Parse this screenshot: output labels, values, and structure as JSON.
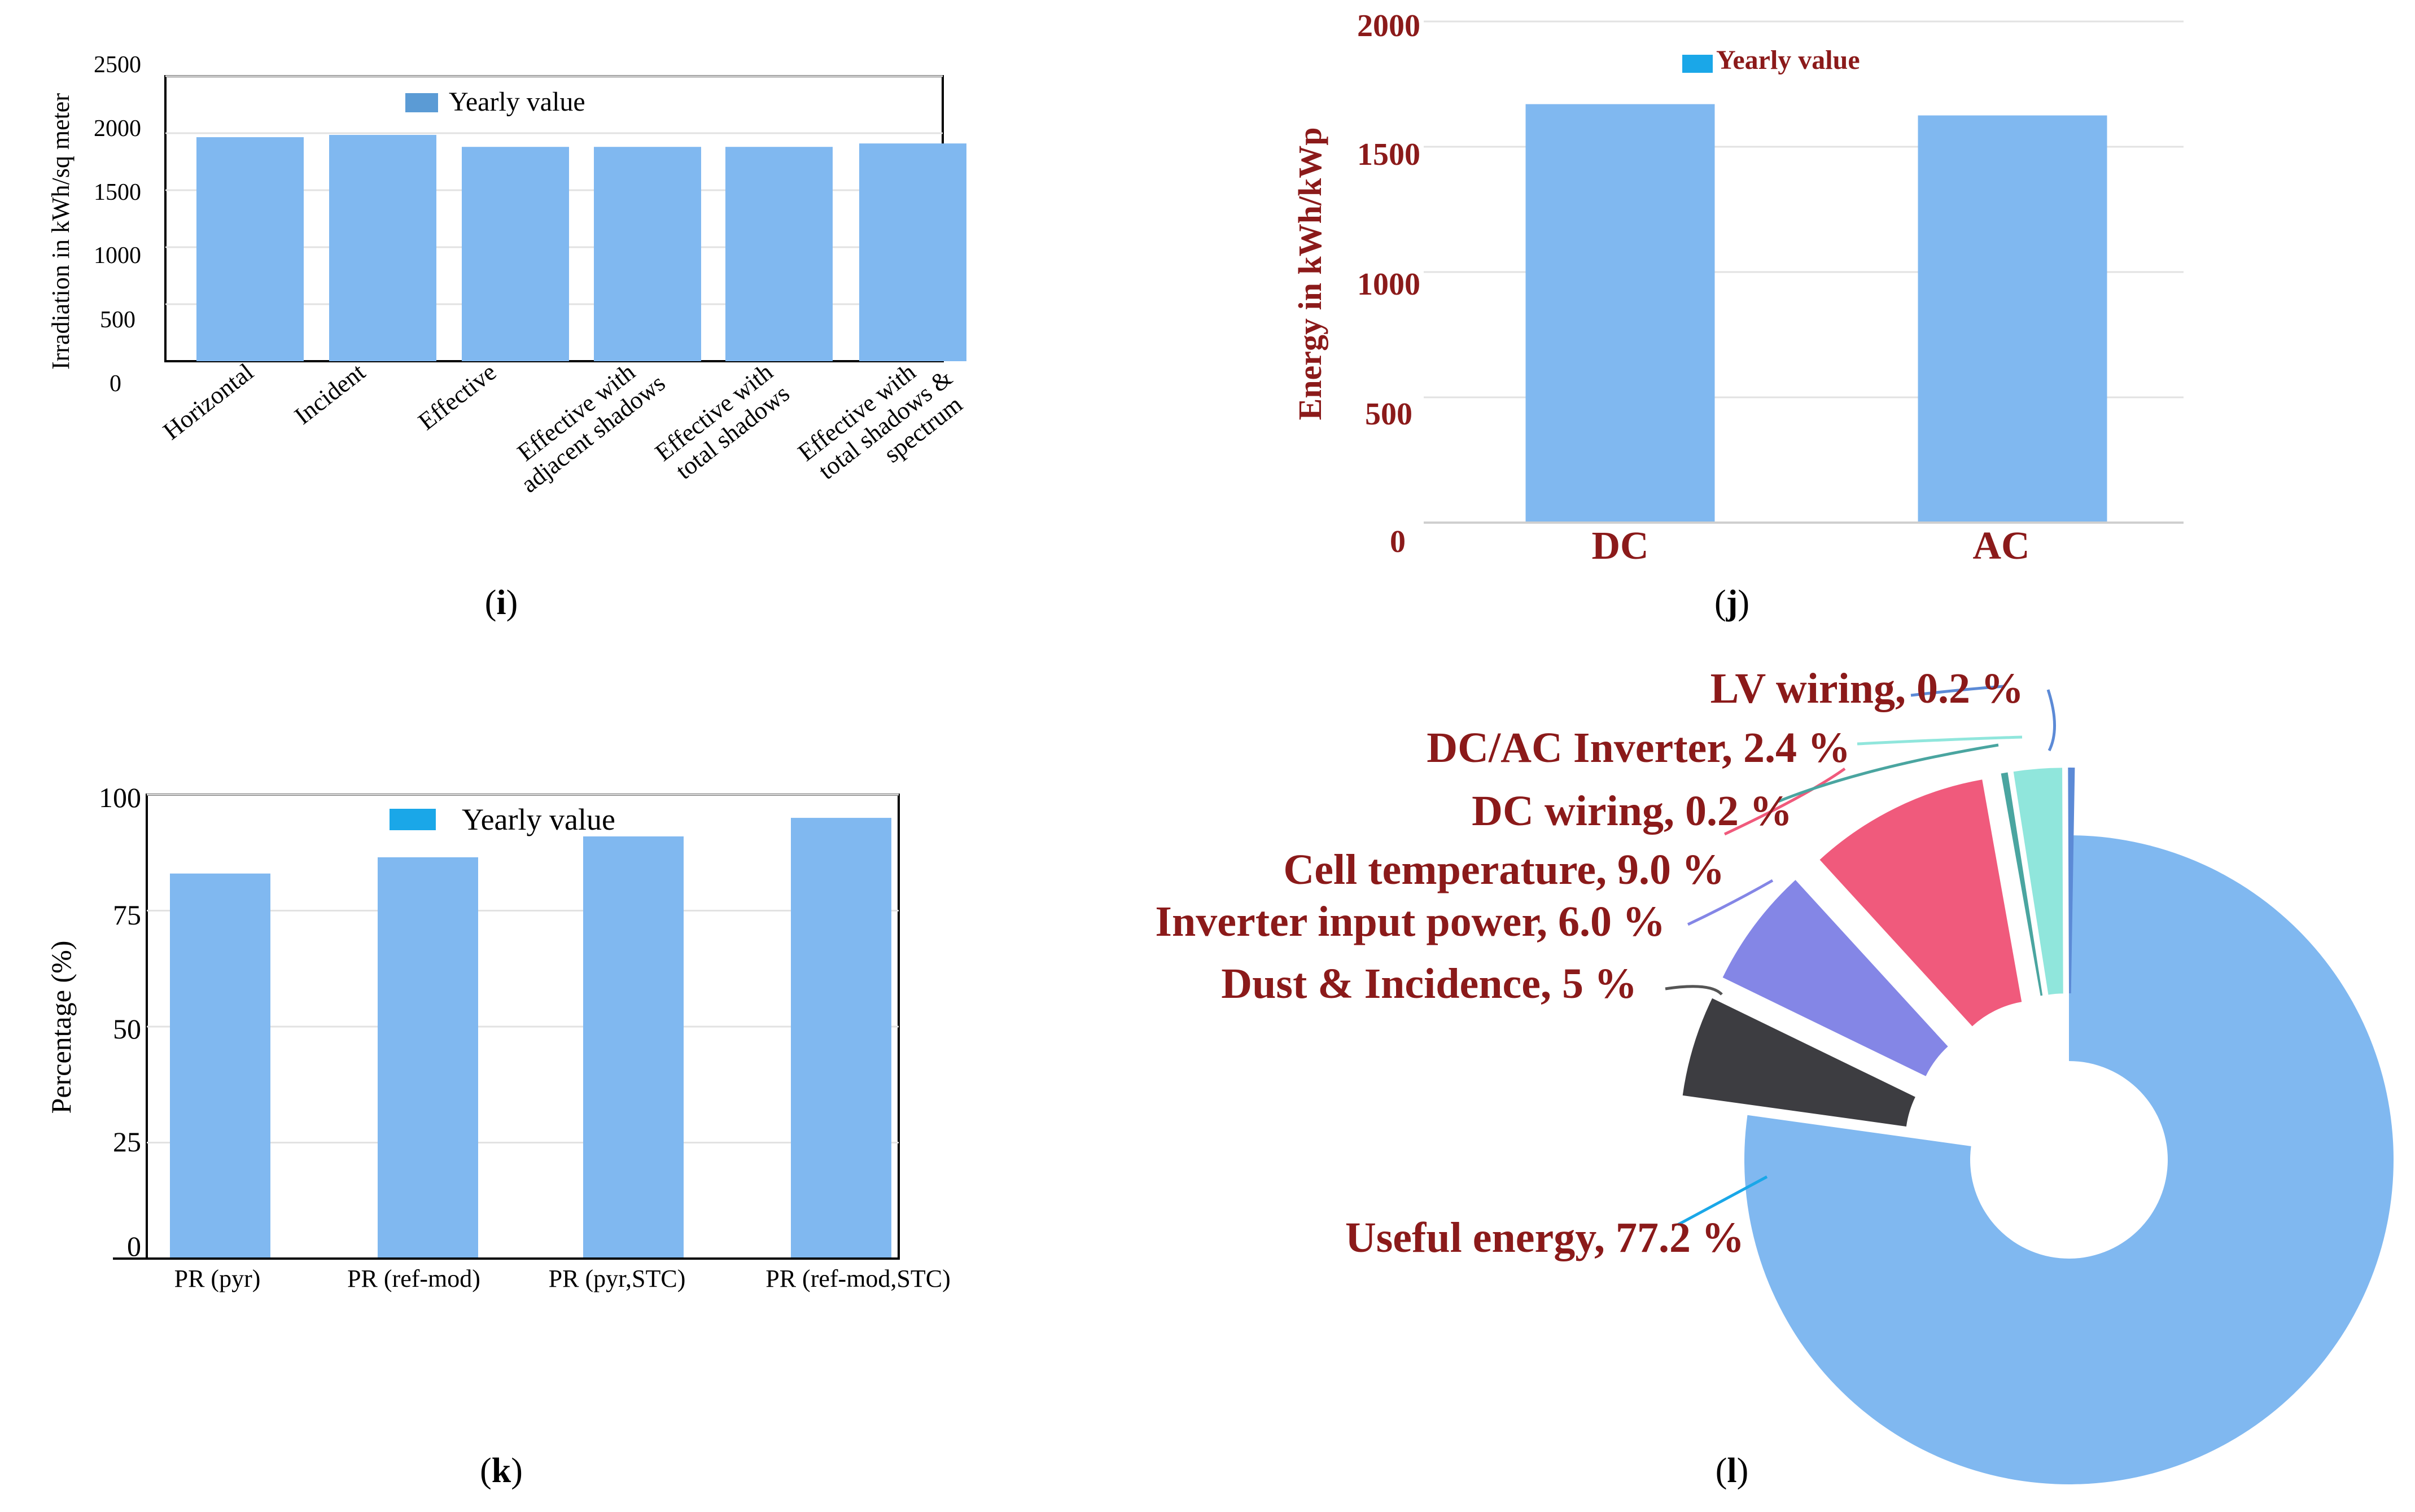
{
  "colors": {
    "bar": "#80b8f0",
    "legend_i": "#5b9bd5",
    "legend_cyan": "#1aa7e8",
    "dark_red": "#8b1a1a",
    "axis": "#000000",
    "grid": "#e2e2e2"
  },
  "chart_data": [
    {
      "id": "i",
      "type": "bar",
      "caption_prefix": "(",
      "caption_letter": "i",
      "caption_suffix": ")",
      "ylabel": "Irradiation in kWh/sq meter",
      "yticks": [
        "0",
        "500",
        "1000",
        "1500",
        "2000",
        "2500"
      ],
      "ylim": [
        0,
        2500
      ],
      "legend": "Yearly value",
      "categories": [
        [
          "Horizontal"
        ],
        [
          "Incident"
        ],
        [
          "Effective"
        ],
        [
          "Effective with",
          "adjacent shadows"
        ],
        [
          "Effective with",
          "total shadows"
        ],
        [
          "Effective with",
          "total shadows &",
          "spectrum"
        ]
      ],
      "values": [
        1965,
        1985,
        1880,
        1880,
        1880,
        1910
      ]
    },
    {
      "id": "j",
      "type": "bar",
      "caption_prefix": "(",
      "caption_letter": "j",
      "caption_suffix": ")",
      "ylabel": "Energy in kWh/kWp",
      "yticks": [
        "0",
        "500",
        "1000",
        "1500",
        "2000"
      ],
      "ylim": [
        0,
        2000
      ],
      "legend": "Yearly value",
      "categories": [
        "DC",
        "AC"
      ],
      "values": [
        1670,
        1625
      ]
    },
    {
      "id": "k",
      "type": "bar",
      "caption_prefix": "(",
      "caption_letter": "k",
      "caption_suffix": ")",
      "ylabel": "Percentage (%)",
      "yticks": [
        "0",
        "25",
        "50",
        "75",
        "100"
      ],
      "ylim": [
        0,
        100
      ],
      "legend": "Yearly value",
      "categories": [
        "PR (pyr)",
        "PR (ref-mod)",
        "PR (pyr,STC)",
        "PR (ref-mod,STC)"
      ],
      "values": [
        83,
        86.5,
        91,
        95
      ]
    },
    {
      "id": "l",
      "type": "pie",
      "caption_prefix": "(",
      "caption_letter": "l",
      "caption_suffix": ")",
      "slices": [
        {
          "label": "Useful energy, 77.2 %",
          "value": 77.2,
          "color": "#80b8f0"
        },
        {
          "label": "Dust & Incidence, 5 %",
          "value": 5,
          "color": "#3d3d41"
        },
        {
          "label": "Inverter input power, 6.0 %",
          "value": 6.0,
          "color": "#8486e6"
        },
        {
          "label": "Cell temperature, 9.0 %",
          "value": 9.0,
          "color": "#f05a7c"
        },
        {
          "label": "DC wiring, 0.2 %",
          "value": 0.2,
          "color": "#4aa5a0"
        },
        {
          "label": "DC/AC Inverter, 2.4 %",
          "value": 2.4,
          "color": "#90e6dc"
        },
        {
          "label": "LV wiring, 0.2 %",
          "value": 0.2,
          "color": "#5c8ad6"
        }
      ]
    }
  ]
}
